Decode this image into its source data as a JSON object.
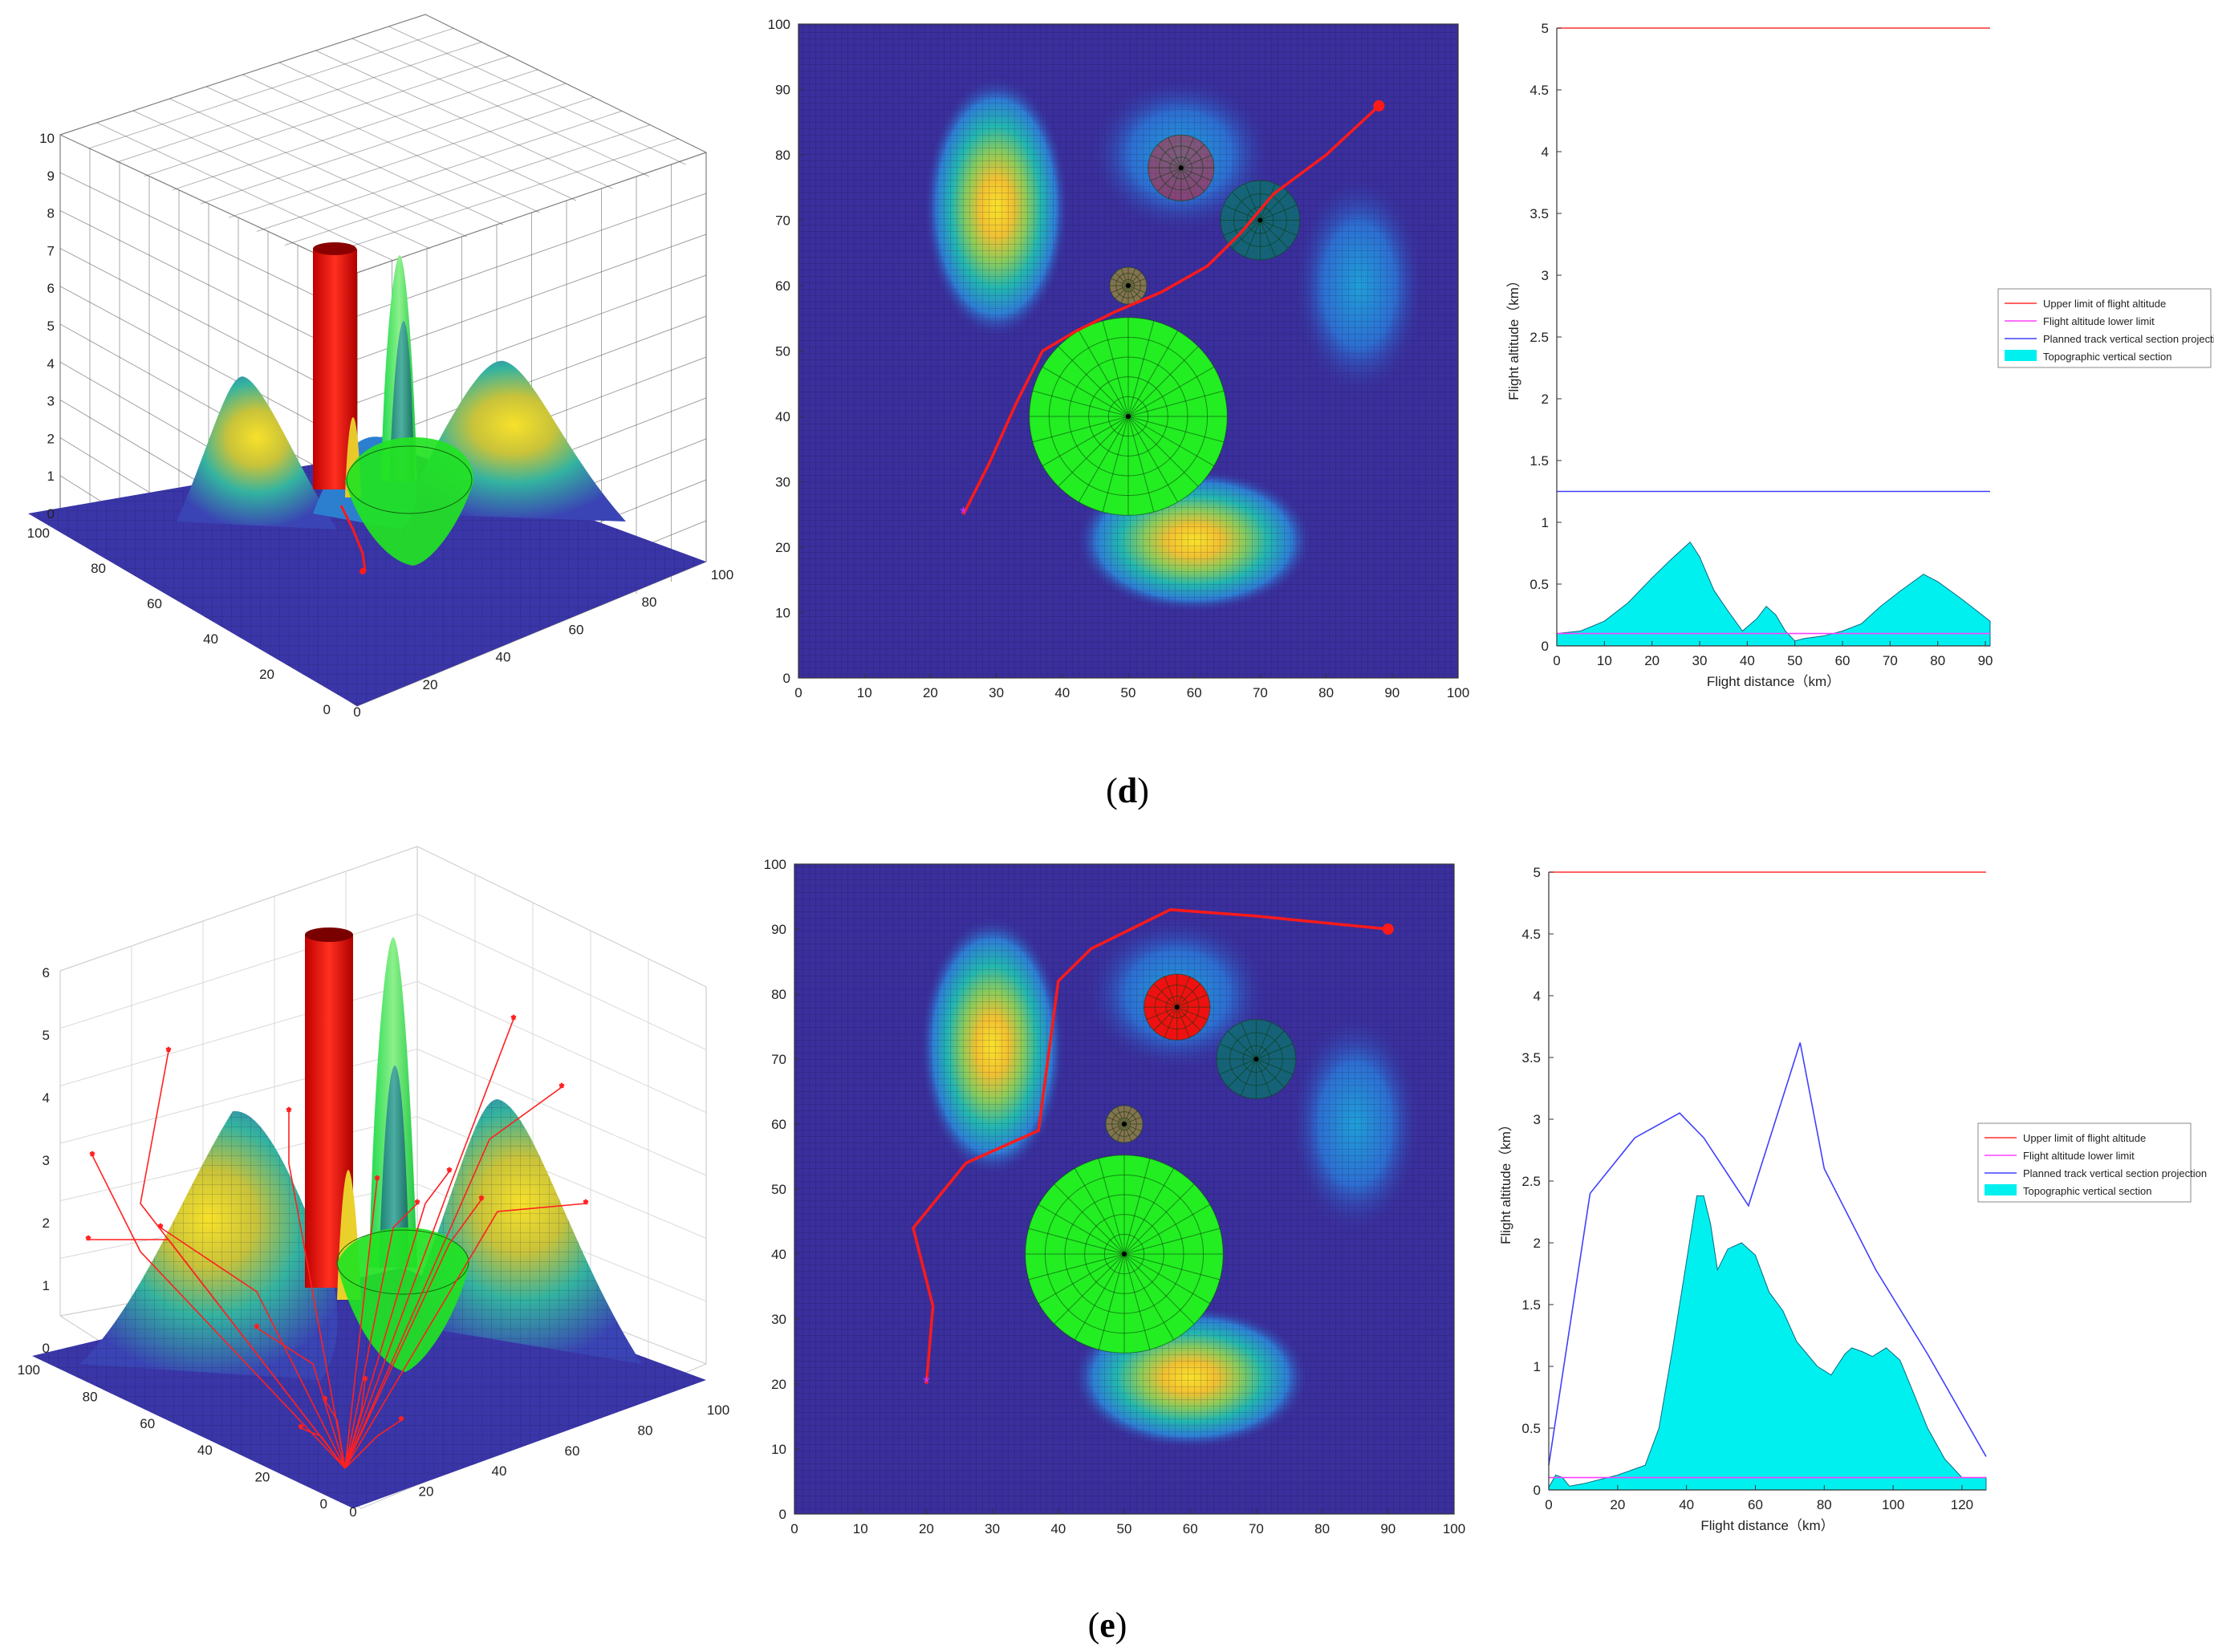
{
  "captions": [
    {
      "open": "(",
      "letter": "d",
      "close": ")"
    },
    {
      "open": "(",
      "letter": "e",
      "close": ")"
    }
  ],
  "colors": {
    "upper": "#ff3030",
    "lower": "#ff40ff",
    "track": "#4040ff",
    "terrain": "#00f0f0",
    "path": "#ff1a1a",
    "threat_big": "#22ee22",
    "threat_red": "#ee1111",
    "threat_teal": "#0e7070",
    "threat_gold": "#a08a3a",
    "map_bg": "#3a2f9c"
  },
  "legend_labels": [
    "Upper limit of flight altitude",
    "Flight altitude lower limit",
    "Planned track vertical section projection",
    "Topographic vertical section"
  ],
  "chart_data": [
    {
      "id": "d-3d",
      "type": "surface3d",
      "z_ticks": [
        "0",
        "1",
        "2",
        "3",
        "4",
        "5",
        "6",
        "7",
        "8",
        "9",
        "10"
      ],
      "x_ticks": [
        "0",
        "20",
        "40",
        "60",
        "80",
        "100"
      ],
      "y_ticks": [
        "0",
        "20",
        "40",
        "60",
        "80",
        "100"
      ],
      "grid_box": true
    },
    {
      "id": "d-map",
      "type": "heatmap",
      "x_ticks": [
        "0",
        "10",
        "20",
        "30",
        "40",
        "50",
        "60",
        "70",
        "80",
        "90",
        "100"
      ],
      "y_ticks": [
        "0",
        "10",
        "20",
        "30",
        "40",
        "50",
        "60",
        "70",
        "80",
        "90",
        "100"
      ],
      "xlim": [
        0,
        100
      ],
      "ylim": [
        0,
        100
      ],
      "path": [
        [
          25,
          25
        ],
        [
          29,
          33
        ],
        [
          33,
          42
        ],
        [
          37,
          50
        ],
        [
          42,
          53
        ],
        [
          48,
          56
        ],
        [
          55,
          59
        ],
        [
          62,
          63
        ],
        [
          67,
          68
        ],
        [
          72,
          74
        ],
        [
          80,
          80
        ],
        [
          88,
          87.5
        ]
      ],
      "start": [
        25,
        25
      ],
      "end": [
        88,
        87.5
      ],
      "threats": [
        {
          "cx": 50,
          "cy": 40,
          "r": 15,
          "kind": "big"
        },
        {
          "cx": 58,
          "cy": 78,
          "r": 5,
          "kind": "red-faded"
        },
        {
          "cx": 70,
          "cy": 70,
          "r": 6,
          "kind": "teal"
        },
        {
          "cx": 50,
          "cy": 60,
          "r": 2.8,
          "kind": "gold"
        }
      ]
    },
    {
      "id": "d-profile",
      "type": "area",
      "xlabel": "Flight distance（km）",
      "ylabel": "Flight altitude（km）",
      "x_ticks": [
        "0",
        "10",
        "20",
        "30",
        "40",
        "50",
        "60",
        "70",
        "80",
        "90"
      ],
      "y_ticks": [
        "0",
        "0.5",
        "1",
        "1.5",
        "2",
        "2.5",
        "3",
        "3.5",
        "4",
        "4.5",
        "5"
      ],
      "xlim": [
        0,
        91
      ],
      "ylim": [
        0,
        5
      ],
      "upper": 5,
      "lower": 0.1,
      "track": [
        [
          0,
          1.25
        ],
        [
          91,
          1.25
        ]
      ],
      "terrain": [
        [
          0,
          0.1
        ],
        [
          5,
          0.12
        ],
        [
          10,
          0.2
        ],
        [
          15,
          0.35
        ],
        [
          20,
          0.55
        ],
        [
          24,
          0.7
        ],
        [
          28,
          0.84
        ],
        [
          30,
          0.72
        ],
        [
          33,
          0.45
        ],
        [
          36,
          0.28
        ],
        [
          39,
          0.12
        ],
        [
          42,
          0.22
        ],
        [
          44,
          0.32
        ],
        [
          46,
          0.25
        ],
        [
          48,
          0.12
        ],
        [
          50,
          0.04
        ],
        [
          52,
          0.06
        ],
        [
          56,
          0.08
        ],
        [
          60,
          0.12
        ],
        [
          64,
          0.18
        ],
        [
          68,
          0.32
        ],
        [
          72,
          0.44
        ],
        [
          77,
          0.58
        ],
        [
          80,
          0.52
        ],
        [
          85,
          0.38
        ],
        [
          91,
          0.2
        ]
      ]
    },
    {
      "id": "e-3d",
      "type": "surface3d",
      "z_ticks": [
        "0",
        "1",
        "2",
        "3",
        "4",
        "5",
        "6"
      ],
      "x_ticks": [
        "0",
        "20",
        "40",
        "60",
        "80",
        "100"
      ],
      "y_ticks": [
        "0",
        "20",
        "40",
        "60",
        "80",
        "100"
      ],
      "grid_box": false
    },
    {
      "id": "e-map",
      "type": "heatmap",
      "x_ticks": [
        "0",
        "10",
        "20",
        "30",
        "40",
        "50",
        "60",
        "70",
        "80",
        "90",
        "100"
      ],
      "y_ticks": [
        "0",
        "10",
        "20",
        "30",
        "40",
        "50",
        "60",
        "70",
        "80",
        "90",
        "100"
      ],
      "xlim": [
        0,
        100
      ],
      "ylim": [
        0,
        100
      ],
      "path": [
        [
          20,
          20
        ],
        [
          21,
          32
        ],
        [
          18,
          44
        ],
        [
          26,
          54
        ],
        [
          37,
          59
        ],
        [
          40,
          82
        ],
        [
          45,
          87
        ],
        [
          51,
          90
        ],
        [
          57,
          93
        ],
        [
          70,
          92
        ],
        [
          90,
          90
        ]
      ],
      "start": [
        20,
        20
      ],
      "end": [
        90,
        90
      ],
      "threats": [
        {
          "cx": 50,
          "cy": 40,
          "r": 15,
          "kind": "big"
        },
        {
          "cx": 58,
          "cy": 78,
          "r": 5,
          "kind": "red"
        },
        {
          "cx": 70,
          "cy": 70,
          "r": 6,
          "kind": "teal"
        },
        {
          "cx": 50,
          "cy": 60,
          "r": 2.8,
          "kind": "gold"
        }
      ]
    },
    {
      "id": "e-profile",
      "type": "area",
      "xlabel": "Flight distance（km）",
      "ylabel": "Flight altitude（km）",
      "x_ticks": [
        "0",
        "20",
        "40",
        "60",
        "80",
        "100",
        "120"
      ],
      "y_ticks": [
        "0",
        "0.5",
        "1",
        "1.5",
        "2",
        "2.5",
        "3",
        "3.5",
        "4",
        "4.5",
        "5"
      ],
      "xlim": [
        0,
        127
      ],
      "ylim": [
        0,
        5
      ],
      "upper": 5,
      "lower": 0.1,
      "track": [
        [
          0,
          0.2
        ],
        [
          12,
          2.4
        ],
        [
          25,
          2.85
        ],
        [
          38,
          3.05
        ],
        [
          45,
          2.85
        ],
        [
          58,
          2.3
        ],
        [
          73,
          3.62
        ],
        [
          80,
          2.6
        ],
        [
          95,
          1.78
        ],
        [
          110,
          1.1
        ],
        [
          127,
          0.27
        ]
      ],
      "terrain": [
        [
          0,
          0.02
        ],
        [
          2,
          0.12
        ],
        [
          4,
          0.1
        ],
        [
          6,
          0.03
        ],
        [
          10,
          0.05
        ],
        [
          20,
          0.12
        ],
        [
          28,
          0.2
        ],
        [
          32,
          0.5
        ],
        [
          36,
          1.15
        ],
        [
          40,
          1.85
        ],
        [
          43,
          2.38
        ],
        [
          45,
          2.38
        ],
        [
          47,
          2.15
        ],
        [
          49,
          1.78
        ],
        [
          52,
          1.95
        ],
        [
          56,
          2.0
        ],
        [
          60,
          1.9
        ],
        [
          64,
          1.6
        ],
        [
          68,
          1.45
        ],
        [
          72,
          1.2
        ],
        [
          78,
          1.0
        ],
        [
          82,
          0.93
        ],
        [
          86,
          1.1
        ],
        [
          88,
          1.15
        ],
        [
          91,
          1.12
        ],
        [
          94,
          1.08
        ],
        [
          98,
          1.15
        ],
        [
          102,
          1.05
        ],
        [
          106,
          0.78
        ],
        [
          110,
          0.5
        ],
        [
          115,
          0.25
        ],
        [
          120,
          0.1
        ],
        [
          127,
          0.1
        ]
      ]
    }
  ]
}
